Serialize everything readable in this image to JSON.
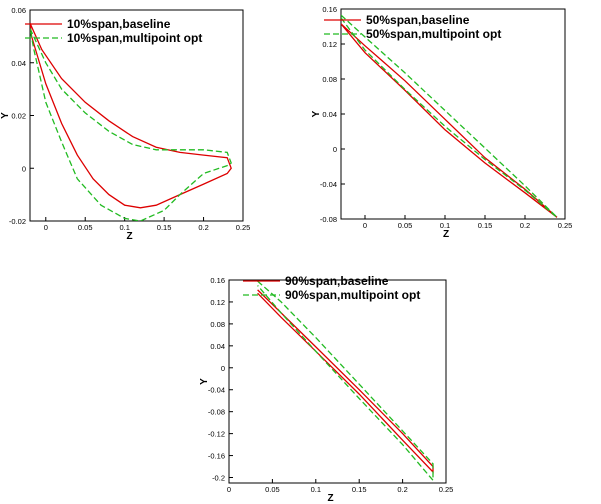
{
  "chart_data": [
    {
      "type": "line",
      "xlabel": "Z",
      "ylabel": "Y",
      "xlim": [
        -0.02,
        0.25
      ],
      "ylim": [
        -0.02,
        0.06
      ],
      "xticks": [
        "0",
        "0.05",
        "0.1",
        "0.15",
        "0.2",
        "0.25"
      ],
      "yticks": [
        "-0.02",
        "0",
        "0.02",
        "0.04",
        "0.06"
      ],
      "legend_position": "top-center",
      "series": [
        {
          "name": "10%span,baseline",
          "color": "#dd0000",
          "style": "solid",
          "x": [
            -0.02,
            -0.005,
            0.02,
            0.05,
            0.08,
            0.11,
            0.14,
            0.17,
            0.2,
            0.23,
            0.235,
            0.23,
            0.2,
            0.17,
            0.14,
            0.12,
            0.1,
            0.08,
            0.06,
            0.04,
            0.02,
            0.0,
            -0.01,
            -0.018,
            -0.02
          ],
          "y": [
            0.055,
            0.045,
            0.034,
            0.025,
            0.018,
            0.012,
            0.008,
            0.006,
            0.005,
            0.004,
            0.0,
            -0.002,
            -0.006,
            -0.01,
            -0.014,
            -0.015,
            -0.014,
            -0.01,
            -0.004,
            0.005,
            0.017,
            0.032,
            0.042,
            0.05,
            0.055
          ]
        },
        {
          "name": "10%span,multipoint opt",
          "color": "#22bb22",
          "style": "dashed",
          "x": [
            -0.02,
            0.0,
            0.02,
            0.05,
            0.08,
            0.11,
            0.14,
            0.17,
            0.2,
            0.23,
            0.235,
            0.23,
            0.2,
            0.17,
            0.15,
            0.12,
            0.1,
            0.07,
            0.04,
            0.02,
            0.0,
            -0.015,
            -0.02
          ],
          "y": [
            0.053,
            0.04,
            0.03,
            0.021,
            0.014,
            0.009,
            0.007,
            0.007,
            0.007,
            0.006,
            0.002,
            0.001,
            -0.002,
            -0.01,
            -0.016,
            -0.02,
            -0.019,
            -0.014,
            -0.004,
            0.01,
            0.025,
            0.045,
            0.053
          ]
        }
      ]
    },
    {
      "type": "line",
      "xlabel": "Z",
      "ylabel": "Y",
      "xlim": [
        -0.03,
        0.25
      ],
      "ylim": [
        -0.08,
        0.16
      ],
      "xticks": [
        "0",
        "0.05",
        "0.1",
        "0.15",
        "0.2",
        "0.25"
      ],
      "yticks": [
        "-0.08",
        "-0.04",
        "0",
        "0.04",
        "0.08",
        "0.12",
        "0.16"
      ],
      "legend_position": "top-center",
      "series": [
        {
          "name": "50%span,baseline",
          "color": "#dd0000",
          "style": "solid",
          "x": [
            -0.03,
            0.0,
            0.05,
            0.1,
            0.15,
            0.2,
            0.24,
            0.2,
            0.15,
            0.1,
            0.05,
            0.0,
            -0.03
          ],
          "y": [
            0.143,
            0.118,
            0.078,
            0.034,
            -0.01,
            -0.046,
            -0.078,
            -0.05,
            -0.016,
            0.022,
            0.067,
            0.11,
            0.143
          ]
        },
        {
          "name": "50%span,multipoint opt",
          "color": "#22bb22",
          "style": "dashed",
          "x": [
            -0.03,
            0.0,
            0.05,
            0.1,
            0.15,
            0.2,
            0.24,
            0.2,
            0.15,
            0.1,
            0.05,
            0.0,
            -0.03
          ],
          "y": [
            0.153,
            0.128,
            0.087,
            0.044,
            0.001,
            -0.042,
            -0.078,
            -0.047,
            -0.012,
            0.026,
            0.068,
            0.113,
            0.15
          ]
        }
      ]
    },
    {
      "type": "line",
      "xlabel": "Z",
      "ylabel": "Y",
      "xlim": [
        0,
        0.25
      ],
      "ylim": [
        -0.21,
        0.16
      ],
      "xticks": [
        "0",
        "0.05",
        "0.1",
        "0.15",
        "0.2",
        "0.25"
      ],
      "yticks": [
        "-0.2",
        "-0.16",
        "-0.12",
        "-0.08",
        "-0.04",
        "0",
        "0.04",
        "0.08",
        "0.12",
        "0.16"
      ],
      "legend_position": "top-center",
      "series": [
        {
          "name": "90%span,baseline",
          "color": "#dd0000",
          "style": "solid",
          "x": [
            0.033,
            0.06,
            0.1,
            0.15,
            0.2,
            0.235,
            0.235,
            0.2,
            0.15,
            0.1,
            0.06,
            0.033
          ],
          "y": [
            0.142,
            0.1,
            0.038,
            -0.04,
            -0.12,
            -0.18,
            -0.19,
            -0.132,
            -0.048,
            0.03,
            0.092,
            0.136
          ]
        },
        {
          "name": "90%span,multipoint opt",
          "color": "#22bb22",
          "style": "dashed",
          "x": [
            0.033,
            0.06,
            0.1,
            0.15,
            0.2,
            0.235,
            0.235,
            0.2,
            0.15,
            0.1,
            0.06,
            0.033
          ],
          "y": [
            0.158,
            0.12,
            0.055,
            -0.03,
            -0.115,
            -0.175,
            -0.205,
            -0.14,
            -0.056,
            0.03,
            0.1,
            0.15
          ]
        }
      ]
    }
  ]
}
